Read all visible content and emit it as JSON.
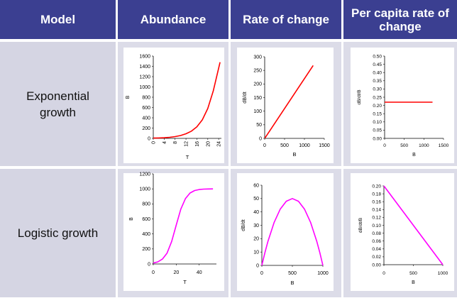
{
  "headers": {
    "model": "Model",
    "abundance": "Abundance",
    "rate": "Rate of change",
    "per_capita": "Per capita rate of change"
  },
  "rows": {
    "exponential": "Exponential growth",
    "logistic": "Logistic growth"
  },
  "colors": {
    "header_bg": "#3b3f91",
    "exponential_line": "#ff0000",
    "logistic_line": "#ff00ff"
  },
  "chart_data": [
    {
      "id": "exp_abundance",
      "type": "line",
      "xlabel": "T",
      "ylabel": "B",
      "xlim": [
        0,
        25
      ],
      "ylim": [
        0,
        1600
      ],
      "xticks": [
        0,
        4,
        8,
        12,
        16,
        20,
        24
      ],
      "xtick_labels": [
        "0",
        "4",
        "8",
        "12",
        "16",
        "20",
        "24"
      ],
      "xtick_rotate": true,
      "yticks": [
        0,
        200,
        400,
        600,
        800,
        1000,
        1200,
        1400,
        1600
      ],
      "ytick_labels": [
        "0",
        "200",
        "400",
        "600",
        "800",
        "1000",
        "1200",
        "1400",
        "1600"
      ],
      "series": [
        {
          "color": "#ff0000",
          "x": [
            0,
            2,
            4,
            6,
            8,
            10,
            12,
            14,
            16,
            18,
            20,
            22,
            24.5
          ],
          "y": [
            5,
            8,
            13,
            21,
            34,
            55,
            89,
            140,
            225,
            360,
            580,
            920,
            1480
          ]
        }
      ]
    },
    {
      "id": "exp_rate",
      "type": "line",
      "xlabel": "B",
      "ylabel": "dB/dt",
      "xlim": [
        0,
        1500
      ],
      "ylim": [
        0,
        300
      ],
      "xticks": [
        0,
        500,
        1000,
        1500
      ],
      "xtick_labels": [
        "0",
        "500",
        "1000",
        "1500"
      ],
      "yticks": [
        0,
        50,
        100,
        150,
        200,
        250,
        300
      ],
      "ytick_labels": [
        "0",
        "50",
        "100",
        "150",
        "200",
        "250",
        "300"
      ],
      "series": [
        {
          "color": "#ff0000",
          "x": [
            5,
            1220
          ],
          "y": [
            1,
            268
          ]
        }
      ]
    },
    {
      "id": "exp_percapita",
      "type": "line",
      "xlabel": "B",
      "ylabel": "dB/dt/B",
      "xlim": [
        0,
        1500
      ],
      "ylim": [
        0,
        0.5
      ],
      "xticks": [
        0,
        500,
        1000,
        1500
      ],
      "xtick_labels": [
        "0",
        "500",
        "1000",
        "1500"
      ],
      "yticks": [
        0,
        0.05,
        0.1,
        0.15,
        0.2,
        0.25,
        0.3,
        0.35,
        0.4,
        0.45,
        0.5
      ],
      "ytick_labels": [
        "0.00",
        "0.05",
        "0.10",
        "0.15",
        "0.20",
        "0.25",
        "0.30",
        "0.35",
        "0.40",
        "0.45",
        "0.50"
      ],
      "series": [
        {
          "color": "#ff0000",
          "x": [
            0,
            1220
          ],
          "y": [
            0.22,
            0.22
          ]
        }
      ]
    },
    {
      "id": "log_abundance",
      "type": "line",
      "xlabel": "T",
      "ylabel": "B",
      "xlim": [
        0,
        55
      ],
      "ylim": [
        0,
        1200
      ],
      "xticks": [
        0,
        20,
        40
      ],
      "xtick_labels": [
        "0",
        "20",
        "40"
      ],
      "yticks": [
        0,
        200,
        400,
        600,
        800,
        1000,
        1200
      ],
      "ytick_labels": [
        "0",
        "200",
        "400",
        "600",
        "800",
        "1000",
        "1200"
      ],
      "series": [
        {
          "color": "#ff00ff",
          "x": [
            0,
            4,
            8,
            12,
            16,
            20,
            24,
            28,
            32,
            36,
            40,
            44,
            48,
            52
          ],
          "y": [
            12,
            28,
            65,
            145,
            300,
            520,
            730,
            870,
            945,
            978,
            991,
            997,
            999,
            1000
          ]
        }
      ]
    },
    {
      "id": "log_rate",
      "type": "line",
      "xlabel": "B",
      "ylabel": "dB/dt",
      "xlim": [
        0,
        1000
      ],
      "ylim": [
        0,
        60
      ],
      "xticks": [
        0,
        500,
        1000
      ],
      "xtick_labels": [
        "0",
        "500",
        "1000"
      ],
      "yticks": [
        0,
        10,
        20,
        30,
        40,
        50,
        60
      ],
      "ytick_labels": [
        "0",
        "10",
        "20",
        "30",
        "40",
        "50",
        "60"
      ],
      "series": [
        {
          "color": "#ff00ff",
          "x": [
            0,
            50,
            100,
            200,
            300,
            400,
            500,
            600,
            700,
            800,
            900,
            950,
            1000
          ],
          "y": [
            0,
            9.5,
            18,
            32,
            42,
            48,
            50,
            48,
            42,
            32,
            18,
            9.5,
            0
          ]
        }
      ]
    },
    {
      "id": "log_percapita",
      "type": "line",
      "xlabel": "B",
      "ylabel": "dB/dt/B",
      "xlim": [
        0,
        1000
      ],
      "ylim": [
        0,
        0.2
      ],
      "xticks": [
        0,
        500,
        1000
      ],
      "xtick_labels": [
        "0",
        "500",
        "1000"
      ],
      "yticks": [
        0,
        0.02,
        0.04,
        0.06,
        0.08,
        0.1,
        0.12,
        0.14,
        0.16,
        0.18,
        0.2
      ],
      "ytick_labels": [
        "0.00",
        "0.02",
        "0.04",
        "0.06",
        "0.08",
        "0.10",
        "0.12",
        "0.14",
        "0.16",
        "0.18",
        "0.20"
      ],
      "series": [
        {
          "color": "#ff00ff",
          "x": [
            0,
            1000
          ],
          "y": [
            0.2,
            0
          ]
        }
      ]
    }
  ]
}
